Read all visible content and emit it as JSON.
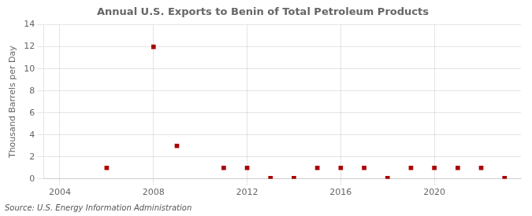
{
  "chart_data": {
    "type": "scatter",
    "title": "Annual U.S. Exports to Benin of Total Petroleum Products",
    "ylabel": "Thousand Barrels per Day",
    "annotation": "Source: U.S. Energy Information Administration",
    "x": [
      2006,
      2008,
      2009,
      2011,
      2012,
      2013,
      2014,
      2015,
      2016,
      2017,
      2018,
      2019,
      2020,
      2021,
      2022,
      2023
    ],
    "values": [
      1,
      12,
      3,
      1,
      1,
      0.07,
      0.07,
      1,
      1,
      1,
      0.07,
      1,
      1,
      1,
      1,
      0.07
    ],
    "color": "#aa0000",
    "marker": "square",
    "xlim": [
      2003.3,
      2023.7
    ],
    "xticks": [
      2004,
      2008,
      2012,
      2016,
      2020
    ],
    "ylim": [
      0,
      14
    ],
    "yticks": [
      0,
      2,
      4,
      6,
      8,
      10,
      12,
      14
    ],
    "grid": true
  }
}
